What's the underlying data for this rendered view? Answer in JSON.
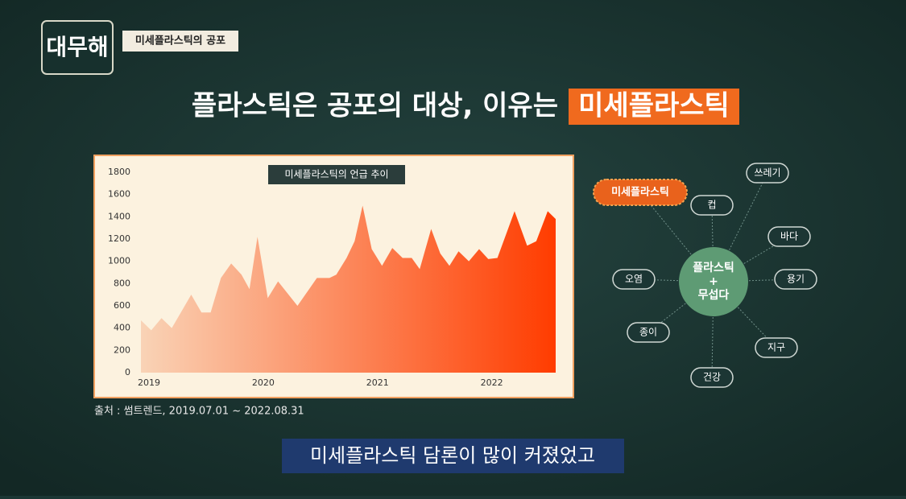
{
  "header": {
    "logo": "대무해",
    "tag": "미세플라스틱의 공포"
  },
  "title": {
    "text": "플라스틱은 공포의 대상, 이유는",
    "highlight": "미세플라스틱"
  },
  "chart_data": {
    "type": "area",
    "title": "미세플라스틱의 언급 추이",
    "x": [
      2019.0,
      2019.09,
      2019.18,
      2019.27,
      2019.44,
      2019.53,
      2019.61,
      2019.7,
      2019.79,
      2019.88,
      2019.95,
      2020.02,
      2020.11,
      2020.2,
      2020.37,
      2020.54,
      2020.65,
      2020.71,
      2020.8,
      2020.87,
      2020.94,
      2021.02,
      2021.11,
      2021.2,
      2021.29,
      2021.37,
      2021.44,
      2021.54,
      2021.62,
      2021.7,
      2021.78,
      2021.87,
      2021.96,
      2022.04,
      2022.12,
      2022.27,
      2022.38,
      2022.46,
      2022.56,
      2022.63
    ],
    "values": [
      470,
      380,
      490,
      400,
      700,
      540,
      540,
      850,
      980,
      880,
      750,
      1220,
      670,
      820,
      600,
      850,
      850,
      880,
      1030,
      1180,
      1500,
      1110,
      960,
      1120,
      1030,
      1030,
      930,
      1290,
      1070,
      960,
      1090,
      1000,
      1110,
      1020,
      1030,
      1450,
      1140,
      1180,
      1450,
      1380
    ],
    "colors": [
      "#f9d3b6",
      "#ff3c00"
    ],
    "xlim": [
      2019,
      2022.63
    ],
    "xticks": [
      2019,
      2020,
      2021,
      2022
    ],
    "ylim": [
      0,
      1800
    ],
    "yticks": [
      0,
      200,
      400,
      600,
      800,
      1000,
      1200,
      1400,
      1600,
      1800
    ],
    "grid": false
  },
  "source": "출처 : 썸트렌드, 2019.07.01 ~ 2022.08.31",
  "diagram": {
    "center": [
      "플라스틱",
      "+",
      "무섭다"
    ],
    "highlight": "미세플라스틱",
    "nodes": [
      "쓰레기",
      "컵",
      "바다",
      "용기",
      "지구",
      "건강",
      "종이",
      "오염"
    ]
  },
  "caption": "미세플라스틱 담론이 많이 커졌었고"
}
